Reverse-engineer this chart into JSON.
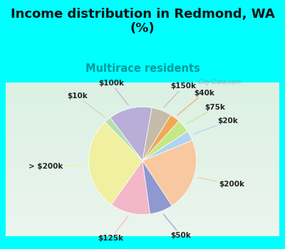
{
  "title": "Income distribution in Redmond, WA\n(%)",
  "subtitle": "Multirace residents",
  "labels": [
    "$100k",
    "$10k",
    "> $200k",
    "$125k",
    "$50k",
    "$200k",
    "$20k",
    "$75k",
    "$40k",
    "$150k"
  ],
  "sizes": [
    13,
    2,
    28,
    12,
    7,
    22,
    3,
    4,
    3,
    6
  ],
  "colors": [
    "#b8aed8",
    "#b8ddb0",
    "#f0f0a0",
    "#f2b8c8",
    "#9098d0",
    "#f8c8a0",
    "#b0d4f0",
    "#c4e888",
    "#f0a858",
    "#c4bca8"
  ],
  "startangle": 80,
  "fig_bg_color": "#00ffff",
  "chart_bg_color": "#d8ede5",
  "watermark": "  City-Data.com",
  "label_fontsize": 7.5,
  "title_fontsize": 13,
  "subtitle_fontsize": 10.5,
  "subtitle_color": "#009999",
  "title_color": "#111111"
}
